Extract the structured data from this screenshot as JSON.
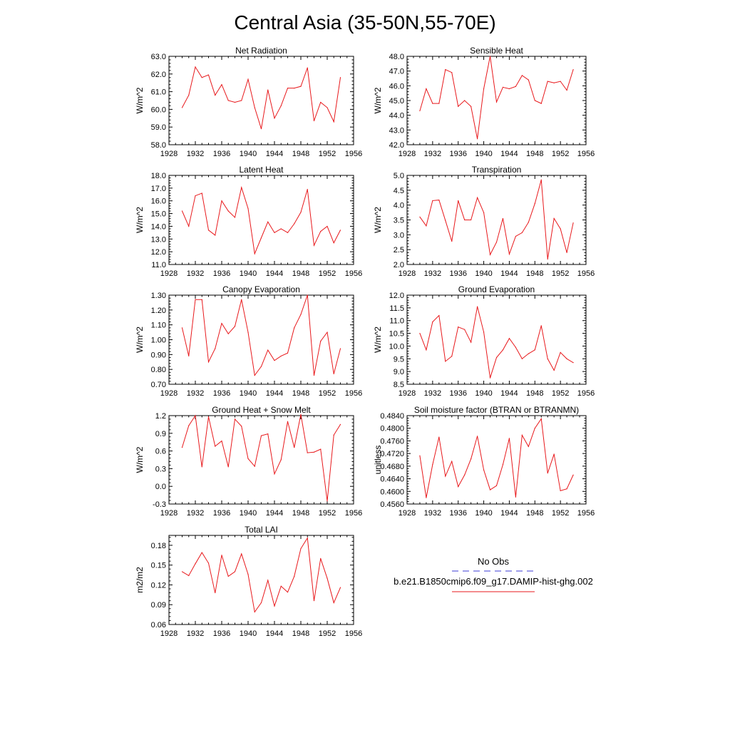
{
  "figure_title": "Central Asia (35-50N,55-70E)",
  "legend": {
    "obs_label": "No Obs",
    "model_label": "b.e21.B1850cmip6.f09_g17.DAMIP-hist-ghg.002",
    "obs_color": "#3b3bd6",
    "model_color": "#e8191c"
  },
  "chart_data": [
    {
      "type": "line",
      "title": "Net Radiation",
      "ylabel": "W/m^2",
      "xlim": [
        1928,
        1956
      ],
      "xticks": [
        "1928",
        "1932",
        "1936",
        "1940",
        "1944",
        "1948",
        "1952",
        "1956"
      ],
      "ylim": [
        58.0,
        63.0
      ],
      "yticks": [
        "58.0",
        "59.0",
        "60.0",
        "61.0",
        "62.0",
        "63.0"
      ],
      "x": [
        1930,
        1931,
        1932,
        1933,
        1934,
        1935,
        1936,
        1937,
        1938,
        1939,
        1940,
        1941,
        1942,
        1943,
        1944,
        1945,
        1946,
        1947,
        1948,
        1949,
        1950,
        1951,
        1952,
        1953,
        1954
      ],
      "series": [
        {
          "name": "b.e21.B1850cmip6.f09_g17.DAMIP-hist-ghg.002",
          "color": "#e8191c",
          "values": [
            60.1,
            60.8,
            62.4,
            61.8,
            61.95,
            60.8,
            61.4,
            60.5,
            60.4,
            60.5,
            61.7,
            60.1,
            58.9,
            61.1,
            59.5,
            60.2,
            61.2,
            61.2,
            61.3,
            62.35,
            59.35,
            60.4,
            60.1,
            59.3,
            61.8
          ]
        }
      ]
    },
    {
      "type": "line",
      "title": "Sensible Heat",
      "ylabel": "W/m^2",
      "xlim": [
        1928,
        1956
      ],
      "xticks": [
        "1928",
        "1932",
        "1936",
        "1940",
        "1944",
        "1948",
        "1952",
        "1956"
      ],
      "ylim": [
        42.0,
        48.0
      ],
      "yticks": [
        "42.0",
        "43.0",
        "44.0",
        "45.0",
        "46.0",
        "47.0",
        "48.0"
      ],
      "x": [
        1930,
        1931,
        1932,
        1933,
        1934,
        1935,
        1936,
        1937,
        1938,
        1939,
        1940,
        1941,
        1942,
        1943,
        1944,
        1945,
        1946,
        1947,
        1948,
        1949,
        1950,
        1951,
        1952,
        1953,
        1954
      ],
      "series": [
        {
          "name": "b.e21.B1850cmip6.f09_g17.DAMIP-hist-ghg.002",
          "color": "#e8191c",
          "values": [
            44.3,
            45.8,
            44.8,
            44.8,
            47.1,
            46.9,
            44.6,
            45.0,
            44.6,
            42.4,
            45.8,
            48.0,
            44.9,
            45.9,
            45.8,
            45.95,
            46.7,
            46.4,
            45.0,
            44.8,
            46.3,
            46.2,
            46.3,
            45.7,
            47.1
          ]
        }
      ]
    },
    {
      "type": "line",
      "title": "Latent Heat",
      "ylabel": "W/m^2",
      "xlim": [
        1928,
        1956
      ],
      "xticks": [
        "1928",
        "1932",
        "1936",
        "1940",
        "1944",
        "1948",
        "1952",
        "1956"
      ],
      "ylim": [
        11.0,
        18.0
      ],
      "yticks": [
        "11.0",
        "12.0",
        "13.0",
        "14.0",
        "15.0",
        "16.0",
        "17.0",
        "18.0"
      ],
      "x": [
        1930,
        1931,
        1932,
        1933,
        1934,
        1935,
        1936,
        1937,
        1938,
        1939,
        1940,
        1941,
        1942,
        1943,
        1944,
        1945,
        1946,
        1947,
        1948,
        1949,
        1950,
        1951,
        1952,
        1953,
        1954
      ],
      "series": [
        {
          "name": "b.e21.B1850cmip6.f09_g17.DAMIP-hist-ghg.002",
          "color": "#e8191c",
          "values": [
            15.2,
            14.0,
            16.4,
            16.6,
            13.7,
            13.3,
            16.0,
            15.2,
            14.7,
            17.05,
            15.4,
            11.85,
            13.1,
            14.35,
            13.5,
            13.8,
            13.5,
            14.2,
            15.1,
            16.9,
            12.5,
            13.6,
            14.0,
            12.7,
            13.7
          ]
        }
      ]
    },
    {
      "type": "line",
      "title": "Transpiration",
      "ylabel": "W/m^2",
      "xlim": [
        1928,
        1956
      ],
      "xticks": [
        "1928",
        "1932",
        "1936",
        "1940",
        "1944",
        "1948",
        "1952",
        "1956"
      ],
      "ylim": [
        2.0,
        5.0
      ],
      "yticks": [
        "2.0",
        "2.5",
        "3.0",
        "3.5",
        "4.0",
        "4.5",
        "5.0"
      ],
      "x": [
        1930,
        1931,
        1932,
        1933,
        1934,
        1935,
        1936,
        1937,
        1938,
        1939,
        1940,
        1941,
        1942,
        1943,
        1944,
        1945,
        1946,
        1947,
        1948,
        1949,
        1950,
        1951,
        1952,
        1953,
        1954
      ],
      "series": [
        {
          "name": "b.e21.B1850cmip6.f09_g17.DAMIP-hist-ghg.002",
          "color": "#e8191c",
          "values": [
            3.6,
            3.3,
            4.15,
            4.17,
            3.48,
            2.78,
            4.15,
            3.5,
            3.5,
            4.25,
            3.75,
            2.33,
            2.75,
            3.55,
            2.35,
            2.95,
            3.07,
            3.42,
            4.05,
            4.85,
            2.18,
            3.55,
            3.2,
            2.4,
            3.4
          ]
        }
      ]
    },
    {
      "type": "line",
      "title": "Canopy Evaporation",
      "ylabel": "W/m^2",
      "xlim": [
        1928,
        1956
      ],
      "xticks": [
        "1928",
        "1932",
        "1936",
        "1940",
        "1944",
        "1948",
        "1952",
        "1956"
      ],
      "ylim": [
        0.7,
        1.3
      ],
      "yticks": [
        "0.70",
        "0.80",
        "0.90",
        "1.00",
        "1.10",
        "1.20",
        "1.30"
      ],
      "x": [
        1930,
        1931,
        1932,
        1933,
        1934,
        1935,
        1936,
        1937,
        1938,
        1939,
        1940,
        1941,
        1942,
        1943,
        1944,
        1945,
        1946,
        1947,
        1948,
        1949,
        1950,
        1951,
        1952,
        1953,
        1954
      ],
      "series": [
        {
          "name": "b.e21.B1850cmip6.f09_g17.DAMIP-hist-ghg.002",
          "color": "#e8191c",
          "values": [
            1.08,
            0.89,
            1.27,
            1.27,
            0.85,
            0.94,
            1.11,
            1.04,
            1.09,
            1.27,
            1.05,
            0.76,
            0.82,
            0.93,
            0.86,
            0.89,
            0.91,
            1.08,
            1.17,
            1.3,
            0.76,
            0.99,
            1.05,
            0.77,
            0.94
          ]
        }
      ]
    },
    {
      "type": "line",
      "title": "Ground Evaporation",
      "ylabel": "W/m^2",
      "xlim": [
        1928,
        1956
      ],
      "xticks": [
        "1928",
        "1932",
        "1936",
        "1940",
        "1944",
        "1948",
        "1952",
        "1956"
      ],
      "ylim": [
        8.5,
        12.0
      ],
      "yticks": [
        "8.5",
        "9.0",
        "9.5",
        "10.0",
        "10.5",
        "11.0",
        "11.5",
        "12.0"
      ],
      "x": [
        1930,
        1931,
        1932,
        1933,
        1934,
        1935,
        1936,
        1937,
        1938,
        1939,
        1940,
        1941,
        1942,
        1943,
        1944,
        1945,
        1946,
        1947,
        1948,
        1949,
        1950,
        1951,
        1952,
        1953,
        1954
      ],
      "series": [
        {
          "name": "b.e21.B1850cmip6.f09_g17.DAMIP-hist-ghg.002",
          "color": "#e8191c",
          "values": [
            10.5,
            9.85,
            10.95,
            11.2,
            9.4,
            9.6,
            10.75,
            10.65,
            10.15,
            11.55,
            10.55,
            8.75,
            9.55,
            9.85,
            10.3,
            9.95,
            9.5,
            9.7,
            9.85,
            10.8,
            9.5,
            9.05,
            9.75,
            9.5,
            9.35
          ]
        }
      ]
    },
    {
      "type": "line",
      "title": "Ground Heat + Snow Melt",
      "ylabel": "W/m^2",
      "xlim": [
        1928,
        1956
      ],
      "xticks": [
        "1928",
        "1932",
        "1936",
        "1940",
        "1944",
        "1948",
        "1952",
        "1956"
      ],
      "ylim": [
        -0.3,
        1.2
      ],
      "yticks": [
        "-0.3",
        "0.0",
        "0.3",
        "0.6",
        "0.9",
        "1.2"
      ],
      "x": [
        1930,
        1931,
        1932,
        1933,
        1934,
        1935,
        1936,
        1937,
        1938,
        1939,
        1940,
        1941,
        1942,
        1943,
        1944,
        1945,
        1946,
        1947,
        1948,
        1949,
        1950,
        1951,
        1952,
        1953,
        1954
      ],
      "series": [
        {
          "name": "b.e21.B1850cmip6.f09_g17.DAMIP-hist-ghg.002",
          "color": "#e8191c",
          "values": [
            0.66,
            1.03,
            1.2,
            0.33,
            1.18,
            0.68,
            0.77,
            0.33,
            1.14,
            1.02,
            0.47,
            0.34,
            0.86,
            0.89,
            0.21,
            0.45,
            1.1,
            0.66,
            1.22,
            0.57,
            0.58,
            0.63,
            -0.25,
            0.87,
            1.05
          ]
        }
      ]
    },
    {
      "type": "line",
      "title": "Soil moisture factor (BTRAN or BTRANMN)",
      "ylabel": "unitless",
      "xlim": [
        1928,
        1956
      ],
      "xticks": [
        "1928",
        "1932",
        "1936",
        "1940",
        "1944",
        "1948",
        "1952",
        "1956"
      ],
      "ylim": [
        0.456,
        0.484
      ],
      "yticks": [
        "0.4560",
        "0.4600",
        "0.4640",
        "0.4680",
        "0.4720",
        "0.4760",
        "0.4800",
        "0.4840"
      ],
      "x": [
        1930,
        1931,
        1932,
        1933,
        1934,
        1935,
        1936,
        1937,
        1938,
        1939,
        1940,
        1941,
        1942,
        1943,
        1944,
        1945,
        1946,
        1947,
        1948,
        1949,
        1950,
        1951,
        1952,
        1953,
        1954
      ],
      "series": [
        {
          "name": "b.e21.B1850cmip6.f09_g17.DAMIP-hist-ghg.002",
          "color": "#e8191c",
          "values": [
            0.4713,
            0.458,
            0.4685,
            0.4772,
            0.4648,
            0.4695,
            0.4615,
            0.4652,
            0.4703,
            0.4775,
            0.4668,
            0.4605,
            0.4618,
            0.4685,
            0.4768,
            0.4582,
            0.4778,
            0.4742,
            0.48,
            0.483,
            0.4658,
            0.4718,
            0.4602,
            0.4608,
            0.4652
          ]
        }
      ]
    },
    {
      "type": "line",
      "title": "Total LAI",
      "ylabel": "m2/m2",
      "xlim": [
        1928,
        1956
      ],
      "xticks": [
        "1928",
        "1932",
        "1936",
        "1940",
        "1944",
        "1948",
        "1952",
        "1956"
      ],
      "ylim": [
        0.06,
        0.195
      ],
      "yticks": [
        "0.06",
        "0.09",
        "0.12",
        "0.15",
        "0.18"
      ],
      "x": [
        1930,
        1931,
        1932,
        1933,
        1934,
        1935,
        1936,
        1937,
        1938,
        1939,
        1940,
        1941,
        1942,
        1943,
        1944,
        1945,
        1946,
        1947,
        1948,
        1949,
        1950,
        1951,
        1952,
        1953,
        1954
      ],
      "series": [
        {
          "name": "b.e21.B1850cmip6.f09_g17.DAMIP-hist-ghg.002",
          "color": "#e8191c",
          "values": [
            0.14,
            0.134,
            0.152,
            0.169,
            0.153,
            0.108,
            0.165,
            0.133,
            0.14,
            0.167,
            0.136,
            0.079,
            0.093,
            0.127,
            0.088,
            0.118,
            0.109,
            0.133,
            0.175,
            0.191,
            0.096,
            0.16,
            0.13,
            0.093,
            0.116
          ]
        }
      ]
    }
  ]
}
